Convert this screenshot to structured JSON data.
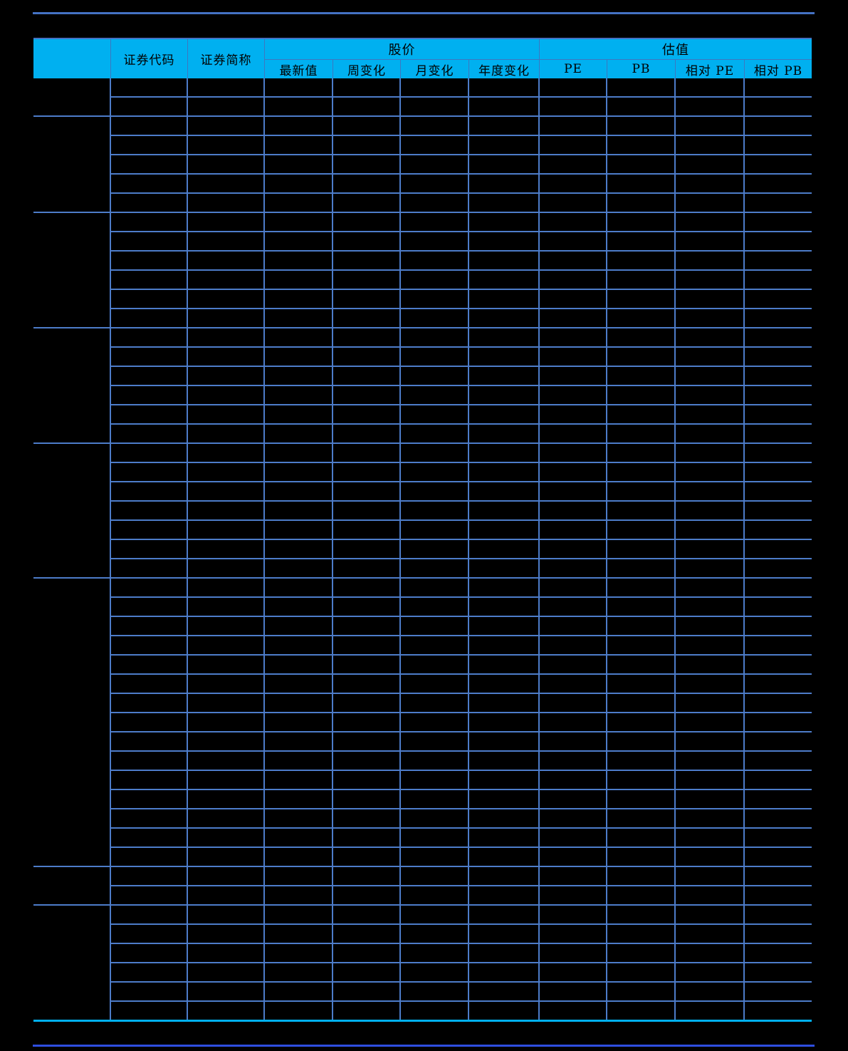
{
  "colors": {
    "page_bg": "#000000",
    "header_bg": "#00B0F0",
    "header_text": "#000000",
    "grid_line": "#4D7CC9",
    "header_sep": "#3C78C0",
    "top_line": "#4472C4",
    "bottom_line": "#2E4EDF",
    "table_bottom_edge": "#00B0F0"
  },
  "table": {
    "header": {
      "corner": "",
      "code": "证券代码",
      "name": "证券简称",
      "price_group": "股价",
      "valuation_group": "估值",
      "price_cols": [
        "最新值",
        "周变化",
        "月变化",
        "年度变化"
      ],
      "valuation_cols": [
        "PE",
        "PB",
        "相对 PE",
        "相对 PB"
      ]
    },
    "groups": [
      {
        "rows": 2
      },
      {
        "rows": 5
      },
      {
        "rows": 6
      },
      {
        "rows": 6
      },
      {
        "rows": 7
      },
      {
        "rows": 15
      },
      {
        "rows": 2
      },
      {
        "rows": 6
      }
    ],
    "body_cells": "empty"
  }
}
